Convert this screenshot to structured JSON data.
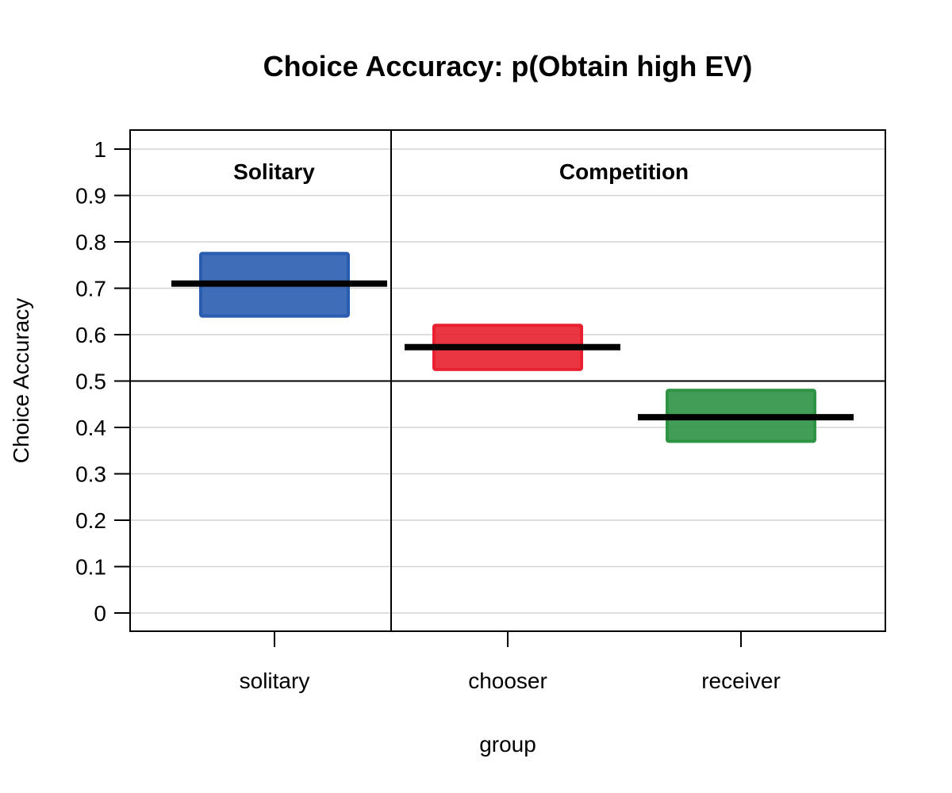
{
  "chart_data": {
    "type": "bar",
    "title": "Choice Accuracy: p(Obtain high EV)",
    "xlabel": "group",
    "ylabel": "Choice Accuracy",
    "ylim": [
      0,
      1
    ],
    "y_ticks": [
      0,
      0.1,
      0.2,
      0.3,
      0.4,
      0.5,
      0.6,
      0.7,
      0.8,
      0.9,
      1
    ],
    "y_tick_labels": [
      "0",
      "0.1",
      "0.2",
      "0.3",
      "0.4",
      "0.5",
      "0.6",
      "0.7",
      "0.8",
      "0.9",
      "1"
    ],
    "grid": true,
    "reference_line": 0.5,
    "categories": [
      "solitary",
      "chooser",
      "receiver"
    ],
    "panels": [
      {
        "label": "Solitary",
        "categories": [
          "solitary"
        ]
      },
      {
        "label": "Competition",
        "categories": [
          "chooser",
          "receiver"
        ]
      }
    ],
    "series": [
      {
        "category": "solitary",
        "mean": 0.71,
        "lower": 0.64,
        "upper": 0.775,
        "color": "#2A5DB0"
      },
      {
        "category": "chooser",
        "mean": 0.573,
        "lower": 0.525,
        "upper": 0.62,
        "color": "#E8202F"
      },
      {
        "category": "receiver",
        "mean": 0.422,
        "lower": 0.37,
        "upper": 0.48,
        "color": "#2E9444"
      }
    ]
  }
}
